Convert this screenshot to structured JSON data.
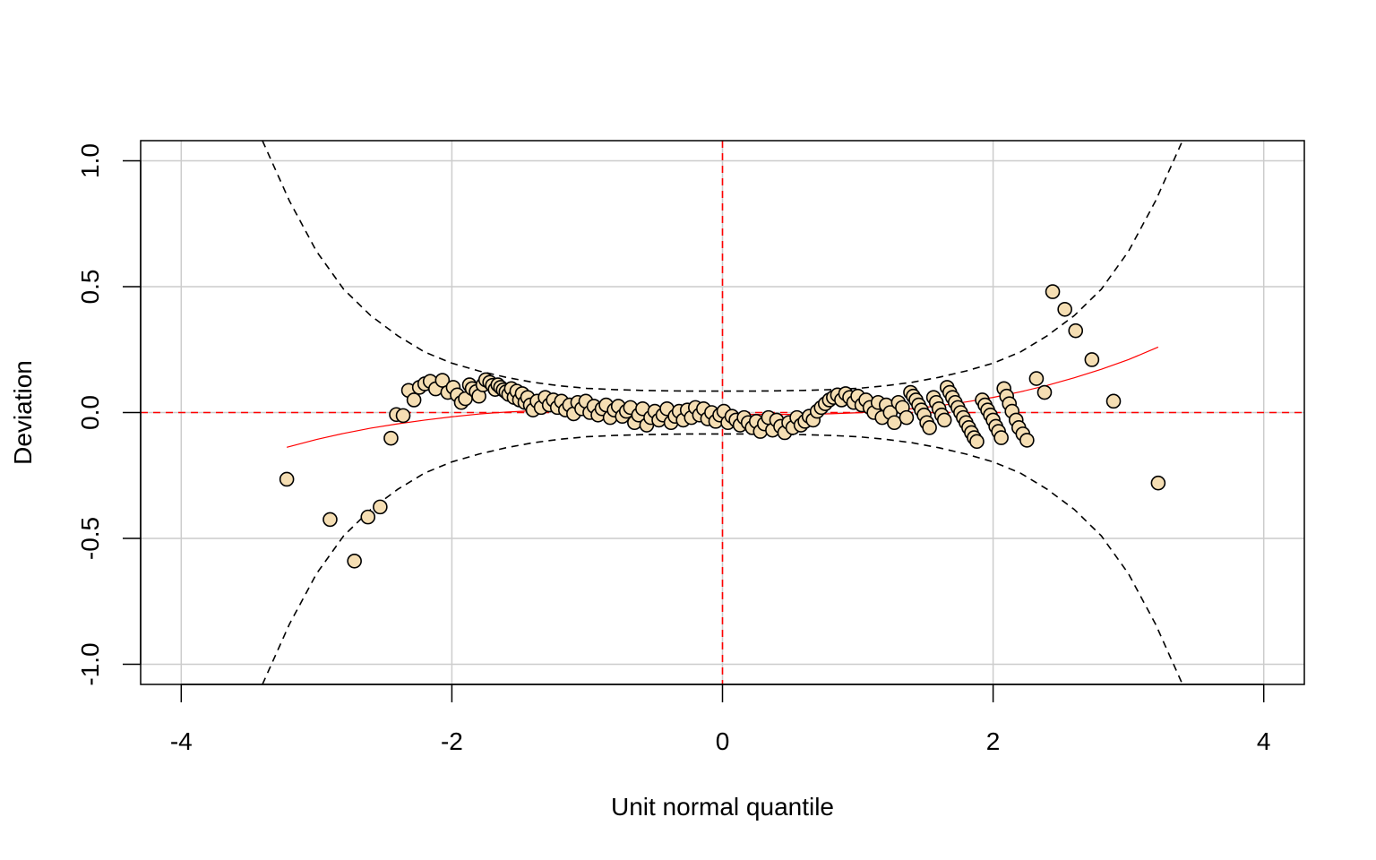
{
  "chart_data": {
    "type": "scatter",
    "title": "",
    "xlabel": "Unit normal quantile",
    "ylabel": "Deviation",
    "xlim": [
      -4.3,
      4.3
    ],
    "ylim": [
      -1.08,
      1.08
    ],
    "xticks": [
      -4,
      -2,
      0,
      2,
      4
    ],
    "yticks": [
      -1.0,
      -0.5,
      0.0,
      0.5,
      1.0
    ],
    "xtick_labels": [
      "-4",
      "-2",
      "0",
      "2",
      "4"
    ],
    "ytick_labels": [
      "-1.0",
      "-0.5",
      "0.0",
      "0.5",
      "1.0"
    ],
    "grid": true,
    "grid_color": "#cccccc",
    "point_fill": "#f5deb3",
    "point_stroke": "#000000",
    "reference_line_color": "#ff0000",
    "fit_line_color": "#ff0000",
    "envelope_color": "#000000",
    "reference_lines": {
      "x": 0,
      "y": 0
    },
    "series": [
      {
        "values": [
          [
            -3.22,
            -0.265
          ],
          [
            -2.9,
            -0.425
          ],
          [
            -2.72,
            -0.59
          ],
          [
            -2.62,
            -0.415
          ],
          [
            -2.53,
            -0.375
          ],
          [
            -2.45,
            -0.102
          ],
          [
            -2.41,
            -0.008
          ],
          [
            -2.36,
            -0.012
          ],
          [
            -2.32,
            0.088
          ],
          [
            -2.28,
            0.05
          ],
          [
            -2.24,
            0.1
          ],
          [
            -2.2,
            0.114
          ],
          [
            -2.16,
            0.124
          ],
          [
            -2.12,
            0.094
          ],
          [
            -2.07,
            0.128
          ],
          [
            -2.03,
            0.08
          ],
          [
            -1.99,
            0.1
          ],
          [
            -1.96,
            0.07
          ],
          [
            -1.93,
            0.04
          ],
          [
            -1.9,
            0.055
          ],
          [
            -1.87,
            0.11
          ],
          [
            -1.85,
            0.095
          ],
          [
            -1.82,
            0.083
          ],
          [
            -1.8,
            0.065
          ],
          [
            -1.77,
            0.11
          ],
          [
            -1.75,
            0.13
          ],
          [
            -1.72,
            0.12
          ],
          [
            -1.7,
            0.108
          ],
          [
            -1.68,
            0.092
          ],
          [
            -1.66,
            0.11
          ],
          [
            -1.64,
            0.1
          ],
          [
            -1.62,
            0.09
          ],
          [
            -1.6,
            0.082
          ],
          [
            -1.58,
            0.072
          ],
          [
            -1.56,
            0.095
          ],
          [
            -1.54,
            0.06
          ],
          [
            -1.52,
            0.085
          ],
          [
            -1.5,
            0.05
          ],
          [
            -1.48,
            0.075
          ],
          [
            -1.46,
            0.04
          ],
          [
            -1.44,
            0.06
          ],
          [
            -1.42,
            0.03
          ],
          [
            -1.4,
            0.01
          ],
          [
            -1.37,
            0.045
          ],
          [
            -1.34,
            0.02
          ],
          [
            -1.31,
            0.06
          ],
          [
            -1.28,
            0.03
          ],
          [
            -1.25,
            0.05
          ],
          [
            -1.22,
            0.02
          ],
          [
            -1.19,
            0.045
          ],
          [
            -1.16,
            0.01
          ],
          [
            -1.13,
            0.03
          ],
          [
            -1.1,
            -0.005
          ],
          [
            -1.07,
            0.04
          ],
          [
            -1.04,
            0.015
          ],
          [
            -1.01,
            0.045
          ],
          [
            -0.98,
            0.0
          ],
          [
            -0.95,
            0.025
          ],
          [
            -0.92,
            -0.01
          ],
          [
            -0.89,
            0.015
          ],
          [
            -0.86,
            0.03
          ],
          [
            -0.83,
            -0.02
          ],
          [
            -0.8,
            0.01
          ],
          [
            -0.77,
            0.025
          ],
          [
            -0.74,
            -0.015
          ],
          [
            -0.71,
            0.005
          ],
          [
            -0.68,
            0.02
          ],
          [
            -0.65,
            -0.04
          ],
          [
            -0.62,
            -0.01
          ],
          [
            -0.59,
            0.015
          ],
          [
            -0.56,
            -0.05
          ],
          [
            -0.53,
            -0.02
          ],
          [
            -0.5,
            0.005
          ],
          [
            -0.47,
            -0.03
          ],
          [
            -0.44,
            -0.01
          ],
          [
            -0.41,
            0.015
          ],
          [
            -0.38,
            -0.04
          ],
          [
            -0.35,
            -0.015
          ],
          [
            -0.32,
            0.005
          ],
          [
            -0.29,
            -0.03
          ],
          [
            -0.26,
            0.01
          ],
          [
            -0.23,
            -0.02
          ],
          [
            -0.2,
            0.02
          ],
          [
            -0.17,
            -0.01
          ],
          [
            -0.14,
            0.015
          ],
          [
            -0.11,
            -0.025
          ],
          [
            -0.08,
            0.0
          ],
          [
            -0.05,
            -0.035
          ],
          [
            -0.02,
            -0.01
          ],
          [
            0.01,
            0.005
          ],
          [
            0.04,
            -0.04
          ],
          [
            0.07,
            -0.015
          ],
          [
            0.1,
            -0.03
          ],
          [
            0.13,
            -0.05
          ],
          [
            0.16,
            -0.02
          ],
          [
            0.19,
            -0.04
          ],
          [
            0.22,
            -0.06
          ],
          [
            0.25,
            -0.035
          ],
          [
            0.28,
            -0.075
          ],
          [
            0.31,
            -0.045
          ],
          [
            0.34,
            -0.02
          ],
          [
            0.37,
            -0.07
          ],
          [
            0.4,
            -0.03
          ],
          [
            0.43,
            -0.055
          ],
          [
            0.46,
            -0.08
          ],
          [
            0.49,
            -0.04
          ],
          [
            0.52,
            -0.06
          ],
          [
            0.55,
            -0.02
          ],
          [
            0.58,
            -0.05
          ],
          [
            0.61,
            -0.035
          ],
          [
            0.64,
            -0.015
          ],
          [
            0.67,
            -0.03
          ],
          [
            0.7,
            0.005
          ],
          [
            0.73,
            0.02
          ],
          [
            0.76,
            0.035
          ],
          [
            0.79,
            0.05
          ],
          [
            0.82,
            0.06
          ],
          [
            0.85,
            0.07
          ],
          [
            0.88,
            0.05
          ],
          [
            0.91,
            0.075
          ],
          [
            0.94,
            0.06
          ],
          [
            0.97,
            0.04
          ],
          [
            1.0,
            0.065
          ],
          [
            1.03,
            0.03
          ],
          [
            1.06,
            0.05
          ],
          [
            1.09,
            0.02
          ],
          [
            1.12,
            0.0
          ],
          [
            1.15,
            0.04
          ],
          [
            1.18,
            -0.02
          ],
          [
            1.21,
            0.03
          ],
          [
            1.24,
            0.0
          ],
          [
            1.27,
            -0.04
          ],
          [
            1.3,
            0.04
          ],
          [
            1.33,
            0.02
          ],
          [
            1.36,
            -0.02
          ],
          [
            1.39,
            0.08
          ],
          [
            1.41,
            0.065
          ],
          [
            1.43,
            0.05
          ],
          [
            1.45,
            0.03
          ],
          [
            1.47,
            0.01
          ],
          [
            1.49,
            -0.01
          ],
          [
            1.51,
            -0.04
          ],
          [
            1.53,
            -0.06
          ],
          [
            1.56,
            0.06
          ],
          [
            1.58,
            0.04
          ],
          [
            1.6,
            0.015
          ],
          [
            1.62,
            -0.01
          ],
          [
            1.64,
            -0.03
          ],
          [
            1.66,
            0.1
          ],
          [
            1.68,
            0.08
          ],
          [
            1.7,
            0.06
          ],
          [
            1.72,
            0.04
          ],
          [
            1.74,
            0.02
          ],
          [
            1.76,
            0.0
          ],
          [
            1.78,
            -0.02
          ],
          [
            1.8,
            -0.04
          ],
          [
            1.82,
            -0.06
          ],
          [
            1.84,
            -0.08
          ],
          [
            1.86,
            -0.1
          ],
          [
            1.88,
            -0.115
          ],
          [
            1.92,
            0.05
          ],
          [
            1.94,
            0.03
          ],
          [
            1.96,
            0.01
          ],
          [
            1.98,
            -0.01
          ],
          [
            2.0,
            -0.03
          ],
          [
            2.02,
            -0.055
          ],
          [
            2.04,
            -0.075
          ],
          [
            2.06,
            -0.1
          ],
          [
            2.08,
            0.095
          ],
          [
            2.1,
            0.065
          ],
          [
            2.12,
            0.035
          ],
          [
            2.14,
            0.005
          ],
          [
            2.17,
            -0.03
          ],
          [
            2.19,
            -0.06
          ],
          [
            2.22,
            -0.085
          ],
          [
            2.25,
            -0.11
          ],
          [
            2.32,
            0.135
          ],
          [
            2.38,
            0.08
          ],
          [
            2.44,
            0.48
          ],
          [
            2.53,
            0.41
          ],
          [
            2.61,
            0.325
          ],
          [
            2.73,
            0.21
          ],
          [
            2.89,
            0.045
          ],
          [
            3.22,
            -0.28
          ]
        ]
      }
    ],
    "fit_line": [
      [
        -3.22,
        -0.138
      ],
      [
        -3.0,
        -0.107
      ],
      [
        -2.8,
        -0.083
      ],
      [
        -2.6,
        -0.062
      ],
      [
        -2.4,
        -0.045
      ],
      [
        -2.2,
        -0.03
      ],
      [
        -2.0,
        -0.017
      ],
      [
        -1.8,
        -0.006
      ],
      [
        -1.6,
        0.002
      ],
      [
        -1.4,
        0.007
      ],
      [
        -1.2,
        0.01
      ],
      [
        -1.0,
        0.011
      ],
      [
        -0.8,
        0.01
      ],
      [
        -0.6,
        0.007
      ],
      [
        -0.4,
        0.003
      ],
      [
        -0.2,
        -0.001
      ],
      [
        0.0,
        -0.004
      ],
      [
        0.2,
        -0.007
      ],
      [
        0.4,
        -0.008
      ],
      [
        0.6,
        -0.007
      ],
      [
        0.8,
        -0.005
      ],
      [
        1.0,
        -0.001
      ],
      [
        1.2,
        0.006
      ],
      [
        1.4,
        0.015
      ],
      [
        1.6,
        0.027
      ],
      [
        1.8,
        0.042
      ],
      [
        2.0,
        0.06
      ],
      [
        2.2,
        0.082
      ],
      [
        2.4,
        0.108
      ],
      [
        2.6,
        0.138
      ],
      [
        2.8,
        0.172
      ],
      [
        3.0,
        0.21
      ],
      [
        3.22,
        0.26
      ]
    ],
    "envelope_upper": [
      [
        -3.4,
        1.08
      ],
      [
        -3.2,
        0.84
      ],
      [
        -3.0,
        0.64
      ],
      [
        -2.8,
        0.49
      ],
      [
        -2.6,
        0.385
      ],
      [
        -2.4,
        0.305
      ],
      [
        -2.2,
        0.24
      ],
      [
        -2.0,
        0.196
      ],
      [
        -1.8,
        0.165
      ],
      [
        -1.6,
        0.14
      ],
      [
        -1.4,
        0.12
      ],
      [
        -1.2,
        0.106
      ],
      [
        -1.0,
        0.096
      ],
      [
        -0.8,
        0.091
      ],
      [
        -0.6,
        0.088
      ],
      [
        -0.4,
        0.086
      ],
      [
        -0.2,
        0.085
      ],
      [
        0.0,
        0.085
      ],
      [
        0.2,
        0.085
      ],
      [
        0.4,
        0.086
      ],
      [
        0.6,
        0.088
      ],
      [
        0.8,
        0.091
      ],
      [
        1.0,
        0.096
      ],
      [
        1.2,
        0.106
      ],
      [
        1.4,
        0.12
      ],
      [
        1.6,
        0.14
      ],
      [
        1.8,
        0.165
      ],
      [
        2.0,
        0.196
      ],
      [
        2.2,
        0.24
      ],
      [
        2.4,
        0.305
      ],
      [
        2.6,
        0.385
      ],
      [
        2.8,
        0.49
      ],
      [
        3.0,
        0.64
      ],
      [
        3.2,
        0.84
      ],
      [
        3.4,
        1.08
      ]
    ],
    "envelope_lower": [
      [
        -3.4,
        -1.08
      ],
      [
        -3.2,
        -0.84
      ],
      [
        -3.0,
        -0.64
      ],
      [
        -2.8,
        -0.49
      ],
      [
        -2.6,
        -0.385
      ],
      [
        -2.4,
        -0.305
      ],
      [
        -2.2,
        -0.24
      ],
      [
        -2.0,
        -0.196
      ],
      [
        -1.8,
        -0.165
      ],
      [
        -1.6,
        -0.14
      ],
      [
        -1.4,
        -0.12
      ],
      [
        -1.2,
        -0.106
      ],
      [
        -1.0,
        -0.096
      ],
      [
        -0.8,
        -0.091
      ],
      [
        -0.6,
        -0.088
      ],
      [
        -0.4,
        -0.086
      ],
      [
        -0.2,
        -0.085
      ],
      [
        0.0,
        -0.085
      ],
      [
        0.2,
        -0.085
      ],
      [
        0.4,
        -0.086
      ],
      [
        0.6,
        -0.088
      ],
      [
        0.8,
        -0.091
      ],
      [
        1.0,
        -0.096
      ],
      [
        1.2,
        -0.106
      ],
      [
        1.4,
        -0.12
      ],
      [
        1.6,
        -0.14
      ],
      [
        1.8,
        -0.165
      ],
      [
        2.0,
        -0.196
      ],
      [
        2.2,
        -0.24
      ],
      [
        2.4,
        -0.305
      ],
      [
        2.6,
        -0.385
      ],
      [
        2.8,
        -0.49
      ],
      [
        3.0,
        -0.64
      ],
      [
        3.2,
        -0.84
      ],
      [
        3.4,
        -1.08
      ]
    ]
  }
}
